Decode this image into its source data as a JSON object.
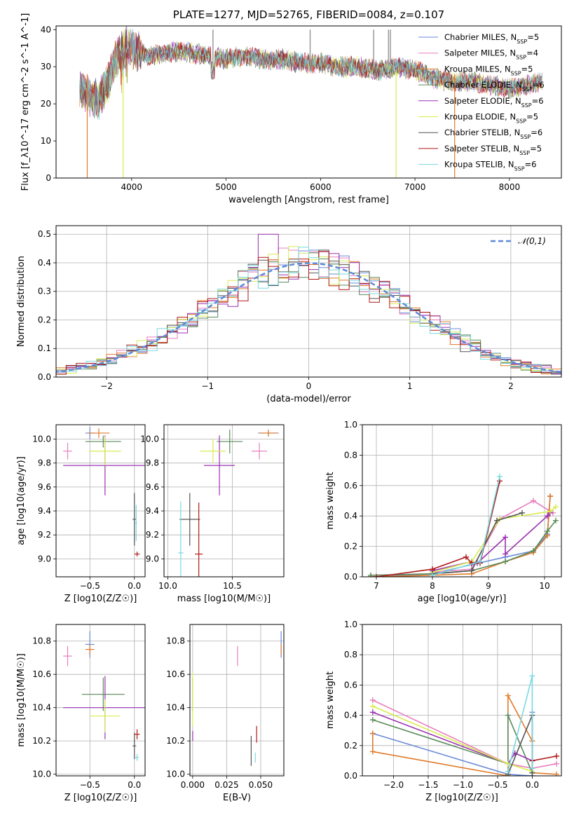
{
  "title": "PLATE=1277, MJD=52765, FIBERID=0084, z=0.107",
  "models": [
    {
      "name": "Chabrier MILES, N",
      "sub": "SSP",
      "suffix": "=5",
      "color": "#6a8ad8"
    },
    {
      "name": "Salpeter MILES, N",
      "sub": "SSP",
      "suffix": "=4",
      "color": "#e87fc0"
    },
    {
      "name": "Kroupa MILES, N",
      "sub": "SSP",
      "suffix": "=5",
      "color": "#e07a2a"
    },
    {
      "name": "Chabrier ELODIE, N",
      "sub": "SSP",
      "suffix": "=6",
      "color": "#5a8a5a"
    },
    {
      "name": "Salpeter ELODIE, N",
      "sub": "SSP",
      "suffix": "=6",
      "color": "#9a30b0"
    },
    {
      "name": "Kroupa ELODIE, N",
      "sub": "SSP",
      "suffix": "=5",
      "color": "#d8ec50"
    },
    {
      "name": "Chabrier STELIB, N",
      "sub": "SSP",
      "suffix": "=6",
      "color": "#555555"
    },
    {
      "name": "Salpeter STELIB, N",
      "sub": "SSP",
      "suffix": "=5",
      "color": "#b01818"
    },
    {
      "name": "Kroupa STELIB, N",
      "sub": "SSP",
      "suffix": "=6",
      "color": "#7ad8e0"
    }
  ],
  "chart_data": [
    {
      "id": "spectrum",
      "type": "line",
      "xlabel": "wavelength [Angstrom, rest frame]",
      "ylabel": "Flux [f_λ10^-17 erg cm^-2 s^-1 A^-1]",
      "xlim": [
        3200,
        8550
      ],
      "ylim": [
        0,
        41
      ],
      "xticks": [
        4000,
        5000,
        6000,
        7000,
        8000
      ],
      "yticks": [
        0,
        10,
        20,
        30,
        40
      ],
      "grid": false,
      "legend_position": "top-right",
      "envelope": [
        [
          3450,
          24
        ],
        [
          3550,
          22
        ],
        [
          3650,
          21
        ],
        [
          3750,
          26
        ],
        [
          3850,
          33
        ],
        [
          3950,
          36
        ],
        [
          4050,
          34
        ],
        [
          4200,
          33
        ],
        [
          4400,
          34
        ],
        [
          4600,
          34
        ],
        [
          4800,
          33
        ],
        [
          5000,
          32
        ],
        [
          5200,
          33
        ],
        [
          5400,
          32
        ],
        [
          5600,
          32
        ],
        [
          5800,
          31
        ],
        [
          6000,
          31
        ],
        [
          6200,
          30
        ],
        [
          6400,
          30
        ],
        [
          6600,
          29
        ],
        [
          6800,
          30
        ],
        [
          7000,
          29
        ],
        [
          7200,
          27
        ],
        [
          7400,
          26
        ],
        [
          7600,
          26
        ],
        [
          7800,
          25
        ],
        [
          8000,
          24
        ],
        [
          8200,
          25
        ],
        [
          8350,
          26
        ]
      ],
      "drop_lines": [
        {
          "x": 3530,
          "color": "#e07a2a"
        },
        {
          "x": 3910,
          "color": "#d8ec50"
        },
        {
          "x": 6800,
          "color": "#d8ec50"
        },
        {
          "x": 7420,
          "color": "#e07a2a"
        }
      ]
    },
    {
      "id": "residuals",
      "type": "step",
      "xlabel": "(data-model)/error",
      "ylabel": "Normed distribution",
      "xlim": [
        -2.5,
        2.5
      ],
      "ylim": [
        0,
        0.53
      ],
      "xticks": [
        -2,
        -1,
        0,
        1,
        2
      ],
      "yticks": [
        0.0,
        0.1,
        0.2,
        0.3,
        0.4,
        0.5
      ],
      "grid": true,
      "legend_position": "top-right",
      "reference": {
        "label": "N(0,1)",
        "mu": 0,
        "sigma": 1,
        "color": "#5a8ad8"
      },
      "bin_width": 0.1
    },
    {
      "id": "age_vs_Z",
      "type": "errorbar",
      "xlabel": "Z [log10(Z/Z☉)]",
      "ylabel": "age [log10(age/yr)]",
      "xlim": [
        -0.88,
        0.12
      ],
      "ylim": [
        8.85,
        10.12
      ],
      "xticks": [
        -0.5,
        0.0
      ],
      "yticks": [
        9.0,
        9.2,
        9.4,
        9.6,
        9.8,
        10.0
      ],
      "grid": true,
      "points": [
        {
          "model": 0,
          "x": -0.5,
          "xerr": 0.05,
          "y": 10.05,
          "yerr": 0.05
        },
        {
          "model": 1,
          "x": -0.75,
          "xerr": 0.05,
          "y": 9.9,
          "yerr": 0.07
        },
        {
          "model": 2,
          "x": -0.4,
          "xerr": 0.12,
          "y": 10.05,
          "yerr": 0.04
        },
        {
          "model": 3,
          "x": -0.35,
          "xerr": 0.2,
          "y": 9.98,
          "yerr": 0.05
        },
        {
          "model": 4,
          "x": -0.33,
          "xerr": 0.47,
          "y": 9.78,
          "yerr": 0.25
        },
        {
          "model": 5,
          "x": -0.33,
          "xerr": 0.18,
          "y": 9.9,
          "yerr": 0.12
        },
        {
          "model": 6,
          "x": 0.0,
          "xerr": 0.02,
          "y": 9.33,
          "yerr": 0.22
        },
        {
          "model": 7,
          "x": 0.03,
          "xerr": 0.03,
          "y": 9.04,
          "yerr": 0.02
        },
        {
          "model": 8,
          "x": 0.02,
          "xerr": 0.01,
          "y": 9.3,
          "yerr": 0.15
        }
      ]
    },
    {
      "id": "age_vs_mass",
      "type": "errorbar",
      "xlabel": "mass [log10(M/M☉)]",
      "ylabel": "",
      "xlim": [
        9.97,
        10.9
      ],
      "ylim": [
        8.85,
        10.12
      ],
      "xticks": [
        10.0,
        10.5
      ],
      "yticks": [
        9.0,
        9.2,
        9.4,
        9.6,
        9.8,
        10.0
      ],
      "grid": true,
      "points": [
        {
          "model": 0,
          "x": 10.78,
          "xerr": 0.08,
          "y": 10.05,
          "yerr": 0.02
        },
        {
          "model": 1,
          "x": 10.71,
          "xerr": 0.06,
          "y": 9.9,
          "yerr": 0.07
        },
        {
          "model": 2,
          "x": 10.78,
          "xerr": 0.07,
          "y": 10.05,
          "yerr": 0.03
        },
        {
          "model": 3,
          "x": 10.48,
          "xerr": 0.1,
          "y": 9.98,
          "yerr": 0.1
        },
        {
          "model": 4,
          "x": 10.4,
          "xerr": 0.12,
          "y": 9.78,
          "yerr": 0.25
        },
        {
          "model": 5,
          "x": 10.35,
          "xerr": 0.1,
          "y": 9.9,
          "yerr": 0.1
        },
        {
          "model": 6,
          "x": 10.17,
          "xerr": 0.08,
          "y": 9.33,
          "yerr": 0.22
        },
        {
          "model": 7,
          "x": 10.24,
          "xerr": 0.03,
          "y": 9.04,
          "yerr": 0.43
        },
        {
          "model": 8,
          "x": 10.1,
          "xerr": 0.02,
          "y": 9.05,
          "yerr": 0.43
        }
      ]
    },
    {
      "id": "mass_weight_vs_age",
      "type": "line",
      "xlabel": "age [log10(age/yr)]",
      "ylabel": "mass weight",
      "xlim": [
        6.75,
        10.3
      ],
      "ylim": [
        0,
        1.0
      ],
      "xticks": [
        7,
        8,
        9,
        10
      ],
      "yticks": [
        0.0,
        0.2,
        0.4,
        0.6,
        0.8,
        1.0
      ],
      "grid": true,
      "series": [
        {
          "model": 0,
          "points": [
            [
              6.9,
              0.0
            ],
            [
              8.0,
              0.02
            ],
            [
              8.7,
              0.08
            ],
            [
              9.3,
              0.13
            ],
            [
              9.8,
              0.17
            ],
            [
              10.05,
              0.28
            ],
            [
              10.1,
              0.53
            ]
          ]
        },
        {
          "model": 1,
          "points": [
            [
              8.0,
              0.03
            ],
            [
              8.7,
              0.05
            ],
            [
              9.2,
              0.38
            ],
            [
              9.8,
              0.5
            ],
            [
              10.15,
              0.42
            ]
          ]
        },
        {
          "model": 2,
          "points": [
            [
              6.9,
              0.0
            ],
            [
              8.0,
              0.01
            ],
            [
              8.7,
              0.02
            ],
            [
              9.3,
              0.1
            ],
            [
              9.8,
              0.16
            ],
            [
              10.05,
              0.27
            ],
            [
              10.1,
              0.53
            ]
          ]
        },
        {
          "model": 3,
          "points": [
            [
              6.9,
              0.01
            ],
            [
              8.0,
              0.02
            ],
            [
              8.7,
              0.04
            ],
            [
              9.3,
              0.1
            ],
            [
              9.8,
              0.17
            ],
            [
              10.05,
              0.3
            ],
            [
              10.2,
              0.37
            ]
          ]
        },
        {
          "model": 4,
          "points": [
            [
              8.0,
              0.04
            ],
            [
              8.7,
              0.1
            ],
            [
              8.8,
              0.09
            ],
            [
              9.3,
              0.26
            ],
            [
              9.3,
              0.15
            ],
            [
              10.05,
              0.4
            ],
            [
              10.1,
              0.42
            ]
          ]
        },
        {
          "model": 5,
          "points": [
            [
              8.0,
              0.03
            ],
            [
              8.7,
              0.1
            ],
            [
              9.2,
              0.38
            ],
            [
              10.1,
              0.43
            ],
            [
              10.2,
              0.46
            ]
          ]
        },
        {
          "model": 6,
          "points": [
            [
              8.0,
              0.02
            ],
            [
              8.7,
              0.04
            ],
            [
              9.15,
              0.37
            ],
            [
              9.6,
              0.42
            ]
          ]
        },
        {
          "model": 7,
          "points": [
            [
              7.0,
              0.0
            ],
            [
              8.0,
              0.05
            ],
            [
              8.6,
              0.13
            ],
            [
              8.7,
              0.09
            ],
            [
              8.85,
              0.09
            ],
            [
              9.2,
              0.63
            ]
          ]
        },
        {
          "model": 8,
          "points": [
            [
              8.0,
              0.01
            ],
            [
              8.85,
              0.1
            ],
            [
              9.2,
              0.66
            ]
          ]
        }
      ]
    },
    {
      "id": "mass_vs_Z",
      "type": "errorbar",
      "xlabel": "Z [log10(Z/Z☉)]",
      "ylabel": "mass [log10(M/M☉)]",
      "xlim": [
        -0.88,
        0.12
      ],
      "ylim": [
        9.99,
        10.9
      ],
      "xticks": [
        -0.5,
        0.0
      ],
      "yticks": [
        10.0,
        10.2,
        10.4,
        10.6,
        10.8
      ],
      "grid": true,
      "points": [
        {
          "model": 0,
          "x": -0.5,
          "xerr": 0.05,
          "y": 10.78,
          "yerr": 0.08
        },
        {
          "model": 1,
          "x": -0.75,
          "xerr": 0.05,
          "y": 10.71,
          "yerr": 0.06
        },
        {
          "model": 2,
          "x": -0.5,
          "xerr": 0.05,
          "y": 10.75,
          "yerr": 0.03
        },
        {
          "model": 3,
          "x": -0.35,
          "xerr": 0.24,
          "y": 10.48,
          "yerr": 0.1
        },
        {
          "model": 4,
          "x": -0.33,
          "xerr": 0.47,
          "y": 10.4,
          "yerr": 0.19
        },
        {
          "model": 5,
          "x": -0.33,
          "xerr": 0.17,
          "y": 10.35,
          "yerr": 0.1
        },
        {
          "model": 6,
          "x": 0.0,
          "xerr": 0.02,
          "y": 10.17,
          "yerr": 0.08
        },
        {
          "model": 7,
          "x": 0.03,
          "xerr": 0.03,
          "y": 10.24,
          "yerr": 0.03
        },
        {
          "model": 8,
          "x": 0.03,
          "xerr": 0.02,
          "y": 10.1,
          "yerr": 0.02
        }
      ]
    },
    {
      "id": "mass_vs_ebv",
      "type": "errorbar",
      "xlabel": "E(B-V)",
      "ylabel": "",
      "xlim": [
        -0.002,
        0.067
      ],
      "ylim": [
        9.99,
        10.9
      ],
      "xticks": [
        0.0,
        0.025,
        0.05
      ],
      "yticks": [
        10.0,
        10.2,
        10.4,
        10.6,
        10.8
      ],
      "grid": true,
      "points": [
        {
          "model": 0,
          "x": 0.065,
          "xerr": 0,
          "y": 10.78,
          "yerr": 0.08
        },
        {
          "model": 1,
          "x": 0.033,
          "xerr": 0,
          "y": 10.71,
          "yerr": 0.06
        },
        {
          "model": 2,
          "x": 0.065,
          "xerr": 0,
          "y": 10.75,
          "yerr": 0.03
        },
        {
          "model": 3,
          "x": 0.0,
          "xerr": 0,
          "y": 10.48,
          "yerr": 0.1
        },
        {
          "model": 4,
          "x": 0.0,
          "xerr": 0,
          "y": 10.23,
          "yerr": 0.03
        },
        {
          "model": 5,
          "x": 0.0,
          "xerr": 0,
          "y": 10.45,
          "yerr": 0.16
        },
        {
          "model": 6,
          "x": 0.043,
          "xerr": 0,
          "y": 10.14,
          "yerr": 0.09
        },
        {
          "model": 7,
          "x": 0.047,
          "xerr": 0,
          "y": 10.24,
          "yerr": 0.05
        },
        {
          "model": 8,
          "x": 0.046,
          "xerr": 0,
          "y": 10.1,
          "yerr": 0.03
        }
      ]
    },
    {
      "id": "mass_weight_vs_Z",
      "type": "line",
      "xlabel": "Z [log10(Z/Z☉)]",
      "ylabel": "mass weight",
      "xlim": [
        -2.45,
        0.42
      ],
      "ylim": [
        0,
        1.0
      ],
      "xticks": [
        -2.0,
        -1.5,
        -1.0,
        -0.5,
        0.0
      ],
      "yticks": [
        0.0,
        0.2,
        0.4,
        0.6,
        0.8,
        1.0
      ],
      "grid": true,
      "series": [
        {
          "model": 0,
          "points": [
            [
              -2.3,
              0.28
            ],
            [
              -0.35,
              0.01
            ],
            [
              0.0,
              0.0
            ],
            [
              0.0,
              0.42
            ]
          ]
        },
        {
          "model": 1,
          "points": [
            [
              -2.3,
              0.5
            ],
            [
              -0.35,
              0.08
            ],
            [
              0.0,
              0.05
            ],
            [
              0.35,
              0.08
            ]
          ]
        },
        {
          "model": 2,
          "points": [
            [
              -2.3,
              0.28
            ],
            [
              -2.3,
              0.16
            ],
            [
              -0.35,
              0.0
            ],
            [
              -0.35,
              0.53
            ],
            [
              0.0,
              0.23
            ],
            [
              0.0,
              0.02
            ],
            [
              0.35,
              0.01
            ]
          ]
        },
        {
          "model": 3,
          "points": [
            [
              -2.3,
              0.37
            ],
            [
              -0.35,
              0.08
            ],
            [
              -0.35,
              0.4
            ],
            [
              0.0,
              0.02
            ]
          ]
        },
        {
          "model": 4,
          "points": [
            [
              -2.3,
              0.42
            ],
            [
              -0.35,
              0.08
            ],
            [
              -0.25,
              0.15
            ],
            [
              0.0,
              0.1
            ]
          ]
        },
        {
          "model": 5,
          "points": [
            [
              -2.3,
              0.46
            ],
            [
              -0.35,
              0.08
            ],
            [
              0.0,
              0.03
            ]
          ]
        },
        {
          "model": 6,
          "points": [
            [
              -0.35,
              0.01
            ],
            [
              0.0,
              0.4
            ],
            [
              0.0,
              0.02
            ]
          ]
        },
        {
          "model": 7,
          "points": [
            [
              0.0,
              0.1
            ],
            [
              0.35,
              0.13
            ]
          ]
        },
        {
          "model": 8,
          "points": [
            [
              -0.35,
              0.03
            ],
            [
              0.0,
              0.66
            ],
            [
              0.0,
              0.05
            ]
          ]
        }
      ]
    }
  ]
}
